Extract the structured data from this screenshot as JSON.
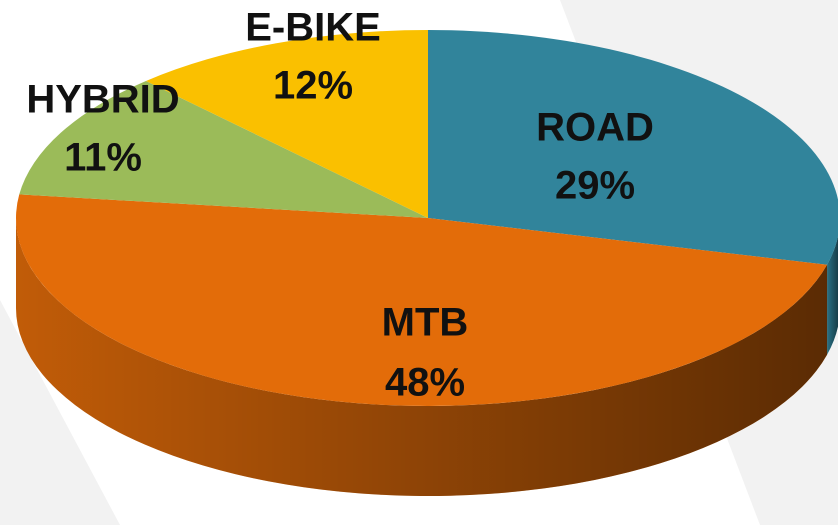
{
  "chart_data": {
    "type": "pie",
    "categories": [
      "ROAD",
      "MTB",
      "HYBRID",
      "E-BIKE"
    ],
    "values": [
      29,
      48,
      11,
      12
    ],
    "value_labels": [
      "29%",
      "48%",
      "11%",
      "12%"
    ],
    "colors": [
      "#31849b",
      "#e36c09",
      "#9bbb59",
      "#fac000"
    ]
  }
}
